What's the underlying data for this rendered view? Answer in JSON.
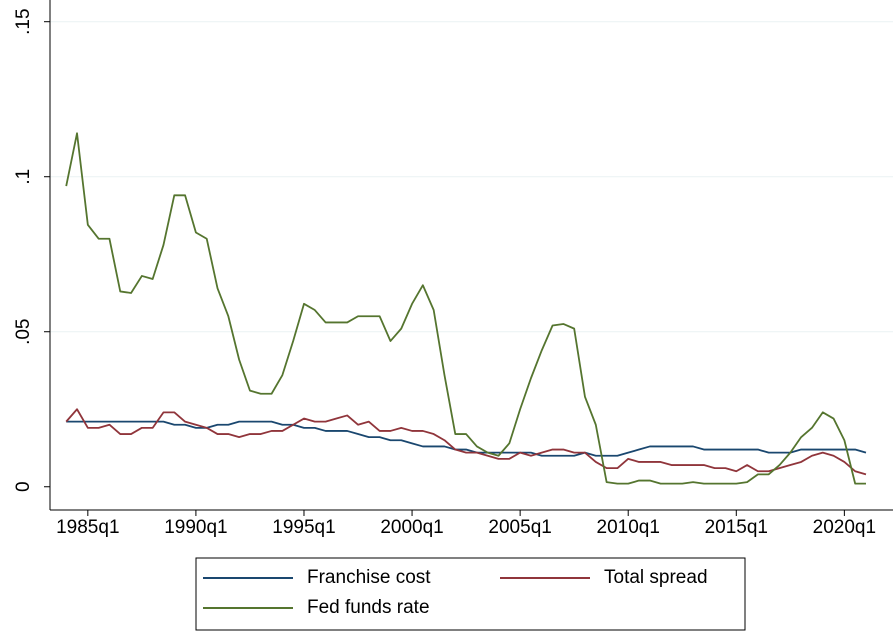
{
  "chart_data": {
    "type": "line",
    "x": [
      1984,
      1984.5,
      1985,
      1985.5,
      1986,
      1986.5,
      1987,
      1987.5,
      1988,
      1988.5,
      1989,
      1989.5,
      1990,
      1990.5,
      1991,
      1991.5,
      1992,
      1992.5,
      1993,
      1993.5,
      1994,
      1994.5,
      1995,
      1995.5,
      1996,
      1996.5,
      1997,
      1997.5,
      1998,
      1998.5,
      1999,
      1999.5,
      2000,
      2000.5,
      2001,
      2001.5,
      2002,
      2002.5,
      2003,
      2003.5,
      2004,
      2004.5,
      2005,
      2005.5,
      2006,
      2006.5,
      2007,
      2007.5,
      2008,
      2008.5,
      2009,
      2009.5,
      2010,
      2010.5,
      2011,
      2011.5,
      2012,
      2012.5,
      2013,
      2013.5,
      2014,
      2014.5,
      2015,
      2015.5,
      2016,
      2016.5,
      2017,
      2017.5,
      2018,
      2018.5,
      2019,
      2019.5,
      2020,
      2020.5,
      2021
    ],
    "series": [
      {
        "name": "Franchise cost",
        "color": "#1a476f",
        "values": [
          0.021,
          0.021,
          0.021,
          0.021,
          0.021,
          0.021,
          0.021,
          0.021,
          0.021,
          0.021,
          0.02,
          0.02,
          0.019,
          0.019,
          0.02,
          0.02,
          0.021,
          0.021,
          0.021,
          0.021,
          0.02,
          0.02,
          0.019,
          0.019,
          0.018,
          0.018,
          0.018,
          0.017,
          0.016,
          0.016,
          0.015,
          0.015,
          0.014,
          0.013,
          0.013,
          0.013,
          0.012,
          0.012,
          0.011,
          0.011,
          0.011,
          0.011,
          0.011,
          0.011,
          0.01,
          0.01,
          0.01,
          0.01,
          0.011,
          0.01,
          0.01,
          0.01,
          0.011,
          0.012,
          0.013,
          0.013,
          0.013,
          0.013,
          0.013,
          0.012,
          0.012,
          0.012,
          0.012,
          0.012,
          0.012,
          0.011,
          0.011,
          0.011,
          0.012,
          0.012,
          0.012,
          0.012,
          0.012,
          0.012,
          0.011
        ]
      },
      {
        "name": "Total spread",
        "color": "#90353b",
        "values": [
          0.021,
          0.025,
          0.019,
          0.019,
          0.02,
          0.017,
          0.017,
          0.019,
          0.019,
          0.024,
          0.024,
          0.021,
          0.02,
          0.019,
          0.017,
          0.017,
          0.016,
          0.017,
          0.017,
          0.018,
          0.018,
          0.02,
          0.022,
          0.021,
          0.021,
          0.022,
          0.023,
          0.02,
          0.021,
          0.018,
          0.018,
          0.019,
          0.018,
          0.018,
          0.017,
          0.015,
          0.012,
          0.011,
          0.011,
          0.01,
          0.009,
          0.009,
          0.011,
          0.01,
          0.011,
          0.012,
          0.012,
          0.011,
          0.011,
          0.008,
          0.006,
          0.006,
          0.009,
          0.008,
          0.008,
          0.008,
          0.007,
          0.007,
          0.007,
          0.007,
          0.006,
          0.006,
          0.005,
          0.007,
          0.005,
          0.005,
          0.006,
          0.007,
          0.008,
          0.01,
          0.011,
          0.01,
          0.008,
          0.005,
          0.004
        ]
      },
      {
        "name": "Fed funds rate",
        "color": "#55752f",
        "values": [
          0.097,
          0.114,
          0.0845,
          0.08,
          0.08,
          0.063,
          0.0625,
          0.068,
          0.067,
          0.078,
          0.094,
          0.094,
          0.082,
          0.08,
          0.064,
          0.055,
          0.041,
          0.031,
          0.03,
          0.03,
          0.036,
          0.047,
          0.059,
          0.057,
          0.053,
          0.053,
          0.053,
          0.055,
          0.055,
          0.055,
          0.047,
          0.051,
          0.059,
          0.065,
          0.057,
          0.036,
          0.017,
          0.017,
          0.013,
          0.011,
          0.01,
          0.014,
          0.025,
          0.035,
          0.044,
          0.052,
          0.0525,
          0.051,
          0.029,
          0.02,
          0.0015,
          0.001,
          0.001,
          0.002,
          0.002,
          0.001,
          0.001,
          0.001,
          0.0015,
          0.001,
          0.001,
          0.001,
          0.001,
          0.0015,
          0.004,
          0.004,
          0.007,
          0.011,
          0.016,
          0.019,
          0.024,
          0.022,
          0.015,
          0.001,
          0.001
        ]
      }
    ],
    "xlim": [
      1983.25,
      2022.25
    ],
    "xticks": [
      {
        "value": 1985,
        "label": "1985q1"
      },
      {
        "value": 1990,
        "label": "1990q1"
      },
      {
        "value": 1995,
        "label": "1995q1"
      },
      {
        "value": 2000,
        "label": "2000q1"
      },
      {
        "value": 2005,
        "label": "2005q1"
      },
      {
        "value": 2010,
        "label": "2010q1"
      },
      {
        "value": 2015,
        "label": "2015q1"
      },
      {
        "value": 2020,
        "label": "2020q1"
      }
    ],
    "ylim": [
      -0.0075,
      0.157
    ],
    "yticks": [
      0,
      {
        "value": 0.05,
        "label": ".05"
      },
      {
        "value": 0.1,
        "label": ".1"
      },
      {
        "value": 0.15,
        "label": ".15"
      }
    ],
    "grid": true
  }
}
